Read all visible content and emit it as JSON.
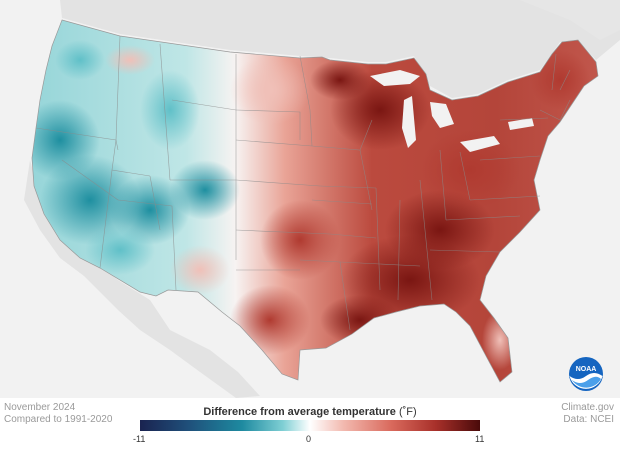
{
  "map": {
    "logo": {
      "icon": "noaa-logo",
      "text": "NOAA"
    },
    "colors": {
      "background": "#f2f2f2",
      "land_neighbors": "#e3e3e3",
      "cold_extreme": "#1a2350",
      "cold": "#2a9aa8",
      "neutral": "#ffffff",
      "warm": "#d9695c",
      "warm_extreme": "#4a0a0a"
    }
  },
  "footer": {
    "date": "November 2024",
    "baseline": "Compared to 1991-2020",
    "source_site": "Climate.gov",
    "source_data": "Data: NCEI",
    "legend": {
      "title": "Difference from average temperature",
      "unit": "(˚F)",
      "min_label": "-11",
      "mid_label": "0",
      "max_label": "11"
    }
  }
}
